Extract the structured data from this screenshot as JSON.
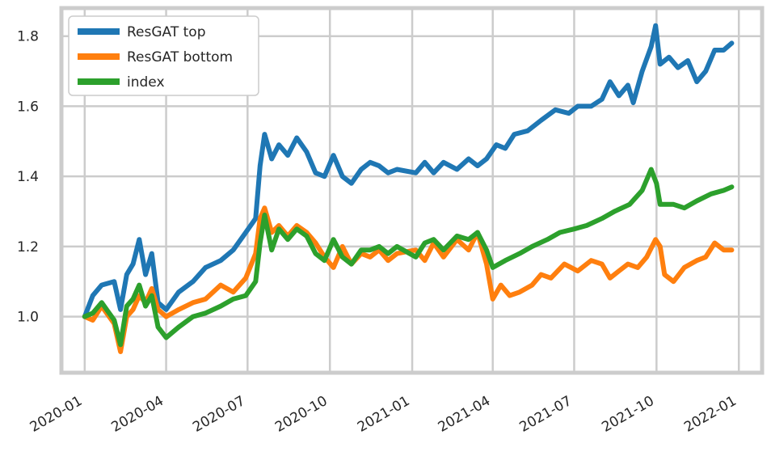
{
  "chart_data": {
    "type": "line",
    "title": "",
    "xlabel": "",
    "ylabel": "",
    "xlim": [
      "2019-12-06",
      "2022-01-27"
    ],
    "ylim": [
      0.84,
      1.88
    ],
    "x_ticks": [
      "2020-01",
      "2020-04",
      "2020-07",
      "2020-10",
      "2021-01",
      "2021-04",
      "2021-07",
      "2021-10",
      "2022-01"
    ],
    "y_ticks": [
      1.0,
      1.2,
      1.4,
      1.6,
      1.8
    ],
    "y_tick_labels": [
      "1.0",
      "1.2",
      "1.4",
      "1.6",
      "1.8"
    ],
    "grid": true,
    "legend_position": "top-left",
    "series": [
      {
        "name": "ResGAT top",
        "color": "#1f77b4",
        "points": [
          [
            "2020-01-01",
            1.0
          ],
          [
            "2020-01-10",
            1.06
          ],
          [
            "2020-01-20",
            1.09
          ],
          [
            "2020-02-03",
            1.1
          ],
          [
            "2020-02-10",
            1.02
          ],
          [
            "2020-02-17",
            1.12
          ],
          [
            "2020-02-24",
            1.15
          ],
          [
            "2020-03-02",
            1.22
          ],
          [
            "2020-03-09",
            1.12
          ],
          [
            "2020-03-16",
            1.18
          ],
          [
            "2020-03-23",
            1.04
          ],
          [
            "2020-04-01",
            1.02
          ],
          [
            "2020-04-15",
            1.07
          ],
          [
            "2020-05-01",
            1.1
          ],
          [
            "2020-05-15",
            1.14
          ],
          [
            "2020-06-01",
            1.16
          ],
          [
            "2020-06-15",
            1.19
          ],
          [
            "2020-06-29",
            1.24
          ],
          [
            "2020-07-10",
            1.28
          ],
          [
            "2020-07-15",
            1.43
          ],
          [
            "2020-07-20",
            1.52
          ],
          [
            "2020-07-28",
            1.45
          ],
          [
            "2020-08-05",
            1.49
          ],
          [
            "2020-08-15",
            1.46
          ],
          [
            "2020-08-25",
            1.51
          ],
          [
            "2020-09-05",
            1.47
          ],
          [
            "2020-09-15",
            1.41
          ],
          [
            "2020-09-25",
            1.4
          ],
          [
            "2020-10-05",
            1.46
          ],
          [
            "2020-10-15",
            1.4
          ],
          [
            "2020-10-25",
            1.38
          ],
          [
            "2020-11-05",
            1.42
          ],
          [
            "2020-11-15",
            1.44
          ],
          [
            "2020-11-25",
            1.43
          ],
          [
            "2020-12-05",
            1.41
          ],
          [
            "2020-12-15",
            1.42
          ],
          [
            "2021-01-05",
            1.41
          ],
          [
            "2021-01-15",
            1.44
          ],
          [
            "2021-01-25",
            1.41
          ],
          [
            "2021-02-05",
            1.44
          ],
          [
            "2021-02-20",
            1.42
          ],
          [
            "2021-03-05",
            1.45
          ],
          [
            "2021-03-15",
            1.43
          ],
          [
            "2021-03-25",
            1.45
          ],
          [
            "2021-04-05",
            1.49
          ],
          [
            "2021-04-15",
            1.48
          ],
          [
            "2021-04-25",
            1.52
          ],
          [
            "2021-05-10",
            1.53
          ],
          [
            "2021-05-25",
            1.56
          ],
          [
            "2021-06-10",
            1.59
          ],
          [
            "2021-06-25",
            1.58
          ],
          [
            "2021-07-05",
            1.6
          ],
          [
            "2021-07-20",
            1.6
          ],
          [
            "2021-08-01",
            1.62
          ],
          [
            "2021-08-10",
            1.67
          ],
          [
            "2021-08-20",
            1.63
          ],
          [
            "2021-08-30",
            1.66
          ],
          [
            "2021-09-05",
            1.61
          ],
          [
            "2021-09-15",
            1.7
          ],
          [
            "2021-09-25",
            1.77
          ],
          [
            "2021-09-30",
            1.83
          ],
          [
            "2021-10-05",
            1.72
          ],
          [
            "2021-10-15",
            1.74
          ],
          [
            "2021-10-25",
            1.71
          ],
          [
            "2021-11-05",
            1.73
          ],
          [
            "2021-11-15",
            1.67
          ],
          [
            "2021-11-25",
            1.7
          ],
          [
            "2021-12-05",
            1.76
          ],
          [
            "2021-12-15",
            1.76
          ],
          [
            "2021-12-24",
            1.78
          ]
        ]
      },
      {
        "name": "ResGAT bottom",
        "color": "#ff7f0e",
        "points": [
          [
            "2020-01-01",
            1.0
          ],
          [
            "2020-01-10",
            0.99
          ],
          [
            "2020-01-20",
            1.03
          ],
          [
            "2020-02-03",
            0.98
          ],
          [
            "2020-02-10",
            0.9
          ],
          [
            "2020-02-17",
            1.0
          ],
          [
            "2020-02-24",
            1.02
          ],
          [
            "2020-03-02",
            1.06
          ],
          [
            "2020-03-09",
            1.04
          ],
          [
            "2020-03-16",
            1.08
          ],
          [
            "2020-03-23",
            1.02
          ],
          [
            "2020-04-01",
            1.0
          ],
          [
            "2020-04-15",
            1.02
          ],
          [
            "2020-05-01",
            1.04
          ],
          [
            "2020-05-15",
            1.05
          ],
          [
            "2020-06-01",
            1.09
          ],
          [
            "2020-06-15",
            1.07
          ],
          [
            "2020-06-29",
            1.11
          ],
          [
            "2020-07-10",
            1.18
          ],
          [
            "2020-07-15",
            1.28
          ],
          [
            "2020-07-20",
            1.31
          ],
          [
            "2020-07-28",
            1.24
          ],
          [
            "2020-08-05",
            1.26
          ],
          [
            "2020-08-15",
            1.23
          ],
          [
            "2020-08-25",
            1.26
          ],
          [
            "2020-09-05",
            1.24
          ],
          [
            "2020-09-15",
            1.21
          ],
          [
            "2020-09-25",
            1.17
          ],
          [
            "2020-10-05",
            1.14
          ],
          [
            "2020-10-15",
            1.2
          ],
          [
            "2020-10-25",
            1.15
          ],
          [
            "2020-11-05",
            1.18
          ],
          [
            "2020-11-15",
            1.17
          ],
          [
            "2020-11-25",
            1.19
          ],
          [
            "2020-12-05",
            1.16
          ],
          [
            "2020-12-15",
            1.18
          ],
          [
            "2021-01-05",
            1.19
          ],
          [
            "2021-01-15",
            1.16
          ],
          [
            "2021-01-25",
            1.21
          ],
          [
            "2021-02-05",
            1.17
          ],
          [
            "2021-02-20",
            1.22
          ],
          [
            "2021-03-05",
            1.19
          ],
          [
            "2021-03-15",
            1.24
          ],
          [
            "2021-03-25",
            1.15
          ],
          [
            "2021-04-01",
            1.05
          ],
          [
            "2021-04-10",
            1.09
          ],
          [
            "2021-04-20",
            1.06
          ],
          [
            "2021-05-01",
            1.07
          ],
          [
            "2021-05-15",
            1.09
          ],
          [
            "2021-05-25",
            1.12
          ],
          [
            "2021-06-05",
            1.11
          ],
          [
            "2021-06-20",
            1.15
          ],
          [
            "2021-07-05",
            1.13
          ],
          [
            "2021-07-20",
            1.16
          ],
          [
            "2021-08-01",
            1.15
          ],
          [
            "2021-08-10",
            1.11
          ],
          [
            "2021-08-20",
            1.13
          ],
          [
            "2021-08-30",
            1.15
          ],
          [
            "2021-09-10",
            1.14
          ],
          [
            "2021-09-20",
            1.17
          ],
          [
            "2021-09-30",
            1.22
          ],
          [
            "2021-10-05",
            1.2
          ],
          [
            "2021-10-10",
            1.12
          ],
          [
            "2021-10-20",
            1.1
          ],
          [
            "2021-11-01",
            1.14
          ],
          [
            "2021-11-15",
            1.16
          ],
          [
            "2021-11-25",
            1.17
          ],
          [
            "2021-12-05",
            1.21
          ],
          [
            "2021-12-15",
            1.19
          ],
          [
            "2021-12-24",
            1.19
          ]
        ]
      },
      {
        "name": "index",
        "color": "#2ca02c",
        "points": [
          [
            "2020-01-01",
            1.0
          ],
          [
            "2020-01-10",
            1.01
          ],
          [
            "2020-01-20",
            1.04
          ],
          [
            "2020-02-03",
            0.99
          ],
          [
            "2020-02-10",
            0.92
          ],
          [
            "2020-02-17",
            1.03
          ],
          [
            "2020-02-24",
            1.05
          ],
          [
            "2020-03-02",
            1.09
          ],
          [
            "2020-03-09",
            1.03
          ],
          [
            "2020-03-16",
            1.06
          ],
          [
            "2020-03-23",
            0.97
          ],
          [
            "2020-04-01",
            0.94
          ],
          [
            "2020-04-15",
            0.97
          ],
          [
            "2020-05-01",
            1.0
          ],
          [
            "2020-05-15",
            1.01
          ],
          [
            "2020-06-01",
            1.03
          ],
          [
            "2020-06-15",
            1.05
          ],
          [
            "2020-06-29",
            1.06
          ],
          [
            "2020-07-10",
            1.1
          ],
          [
            "2020-07-15",
            1.21
          ],
          [
            "2020-07-20",
            1.29
          ],
          [
            "2020-07-28",
            1.19
          ],
          [
            "2020-08-05",
            1.25
          ],
          [
            "2020-08-15",
            1.22
          ],
          [
            "2020-08-25",
            1.25
          ],
          [
            "2020-09-05",
            1.23
          ],
          [
            "2020-09-15",
            1.18
          ],
          [
            "2020-09-25",
            1.16
          ],
          [
            "2020-10-05",
            1.22
          ],
          [
            "2020-10-15",
            1.17
          ],
          [
            "2020-10-25",
            1.15
          ],
          [
            "2020-11-05",
            1.19
          ],
          [
            "2020-11-15",
            1.19
          ],
          [
            "2020-11-25",
            1.2
          ],
          [
            "2020-12-05",
            1.18
          ],
          [
            "2020-12-15",
            1.2
          ],
          [
            "2021-01-05",
            1.17
          ],
          [
            "2021-01-15",
            1.21
          ],
          [
            "2021-01-25",
            1.22
          ],
          [
            "2021-02-05",
            1.19
          ],
          [
            "2021-02-20",
            1.23
          ],
          [
            "2021-03-05",
            1.22
          ],
          [
            "2021-03-15",
            1.24
          ],
          [
            "2021-03-25",
            1.19
          ],
          [
            "2021-04-01",
            1.14
          ],
          [
            "2021-04-15",
            1.16
          ],
          [
            "2021-05-01",
            1.18
          ],
          [
            "2021-05-15",
            1.2
          ],
          [
            "2021-06-01",
            1.22
          ],
          [
            "2021-06-15",
            1.24
          ],
          [
            "2021-07-01",
            1.25
          ],
          [
            "2021-07-15",
            1.26
          ],
          [
            "2021-08-01",
            1.28
          ],
          [
            "2021-08-15",
            1.3
          ],
          [
            "2021-09-01",
            1.32
          ],
          [
            "2021-09-15",
            1.36
          ],
          [
            "2021-09-25",
            1.42
          ],
          [
            "2021-10-01",
            1.38
          ],
          [
            "2021-10-05",
            1.32
          ],
          [
            "2021-10-20",
            1.32
          ],
          [
            "2021-11-01",
            1.31
          ],
          [
            "2021-11-15",
            1.33
          ],
          [
            "2021-12-01",
            1.35
          ],
          [
            "2021-12-15",
            1.36
          ],
          [
            "2021-12-24",
            1.37
          ]
        ]
      }
    ]
  }
}
